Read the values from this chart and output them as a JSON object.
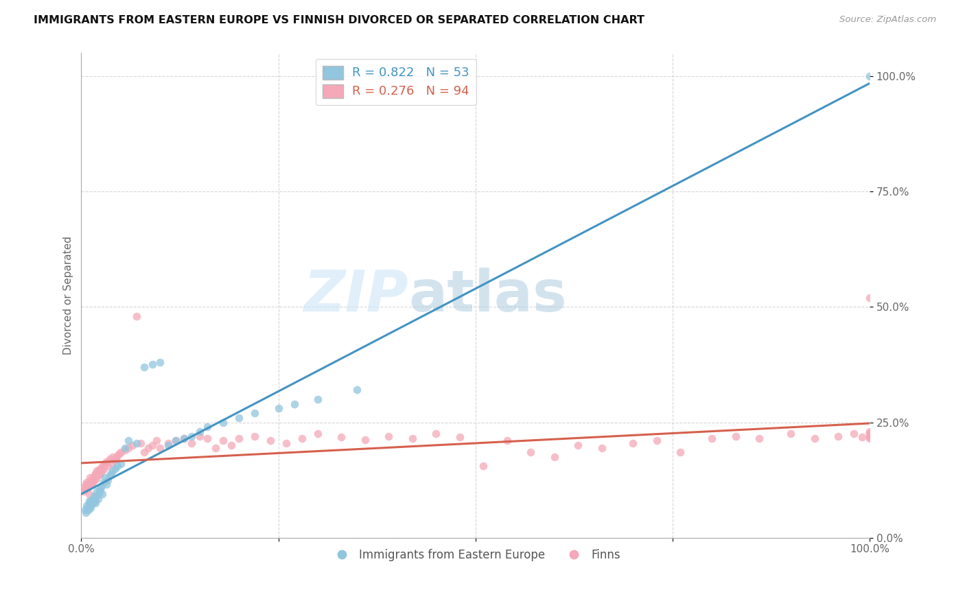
{
  "title": "IMMIGRANTS FROM EASTERN EUROPE VS FINNISH DIVORCED OR SEPARATED CORRELATION CHART",
  "source": "Source: ZipAtlas.com",
  "ylabel": "Divorced or Separated",
  "watermark_part1": "ZIP",
  "watermark_part2": "atlas",
  "blue_R": 0.822,
  "blue_N": 53,
  "pink_R": 0.276,
  "pink_N": 94,
  "blue_color": "#92c5de",
  "pink_color": "#f4a8b8",
  "blue_line_color": "#4393c3",
  "pink_line_color": "#d6604d",
  "ytick_labels": [
    "0.0%",
    "25.0%",
    "50.0%",
    "75.0%",
    "100.0%"
  ],
  "ytick_values": [
    0.0,
    0.25,
    0.5,
    0.75,
    1.0
  ],
  "blue_scatter_x": [
    0.005,
    0.006,
    0.007,
    0.008,
    0.009,
    0.01,
    0.01,
    0.011,
    0.012,
    0.013,
    0.014,
    0.015,
    0.016,
    0.017,
    0.018,
    0.019,
    0.02,
    0.021,
    0.022,
    0.023,
    0.024,
    0.025,
    0.027,
    0.028,
    0.03,
    0.032,
    0.034,
    0.036,
    0.038,
    0.04,
    0.043,
    0.046,
    0.05,
    0.055,
    0.06,
    0.07,
    0.08,
    0.09,
    0.1,
    0.11,
    0.12,
    0.13,
    0.14,
    0.15,
    0.16,
    0.18,
    0.2,
    0.22,
    0.25,
    0.27,
    0.3,
    0.35,
    1.0
  ],
  "blue_scatter_y": [
    0.06,
    0.055,
    0.07,
    0.065,
    0.06,
    0.08,
    0.075,
    0.07,
    0.065,
    0.08,
    0.075,
    0.085,
    0.09,
    0.08,
    0.075,
    0.09,
    0.1,
    0.085,
    0.095,
    0.1,
    0.105,
    0.11,
    0.095,
    0.12,
    0.13,
    0.115,
    0.125,
    0.135,
    0.14,
    0.145,
    0.15,
    0.155,
    0.16,
    0.195,
    0.21,
    0.205,
    0.37,
    0.375,
    0.38,
    0.2,
    0.21,
    0.215,
    0.22,
    0.23,
    0.24,
    0.25,
    0.26,
    0.27,
    0.28,
    0.29,
    0.3,
    0.32,
    1.0
  ],
  "pink_scatter_x": [
    0.003,
    0.004,
    0.005,
    0.006,
    0.007,
    0.008,
    0.009,
    0.01,
    0.01,
    0.011,
    0.012,
    0.013,
    0.014,
    0.015,
    0.016,
    0.017,
    0.018,
    0.019,
    0.02,
    0.021,
    0.022,
    0.023,
    0.024,
    0.025,
    0.026,
    0.027,
    0.028,
    0.029,
    0.03,
    0.032,
    0.034,
    0.036,
    0.038,
    0.04,
    0.042,
    0.044,
    0.046,
    0.048,
    0.05,
    0.055,
    0.06,
    0.065,
    0.07,
    0.075,
    0.08,
    0.085,
    0.09,
    0.095,
    0.1,
    0.11,
    0.12,
    0.13,
    0.14,
    0.15,
    0.16,
    0.17,
    0.18,
    0.19,
    0.2,
    0.22,
    0.24,
    0.26,
    0.28,
    0.3,
    0.33,
    0.36,
    0.39,
    0.42,
    0.45,
    0.48,
    0.51,
    0.54,
    0.57,
    0.6,
    0.63,
    0.66,
    0.7,
    0.73,
    0.76,
    0.8,
    0.83,
    0.86,
    0.9,
    0.93,
    0.96,
    0.98,
    0.99,
    1.0,
    1.0,
    1.0,
    1.0,
    1.0,
    1.0,
    1.0
  ],
  "pink_scatter_y": [
    0.1,
    0.11,
    0.105,
    0.115,
    0.12,
    0.108,
    0.112,
    0.118,
    0.095,
    0.13,
    0.125,
    0.115,
    0.12,
    0.13,
    0.125,
    0.135,
    0.14,
    0.128,
    0.145,
    0.135,
    0.14,
    0.148,
    0.138,
    0.15,
    0.145,
    0.155,
    0.148,
    0.158,
    0.16,
    0.165,
    0.155,
    0.17,
    0.162,
    0.175,
    0.168,
    0.172,
    0.178,
    0.182,
    0.185,
    0.19,
    0.195,
    0.2,
    0.48,
    0.205,
    0.185,
    0.195,
    0.2,
    0.21,
    0.195,
    0.205,
    0.21,
    0.215,
    0.205,
    0.22,
    0.215,
    0.195,
    0.21,
    0.2,
    0.215,
    0.22,
    0.21,
    0.205,
    0.215,
    0.225,
    0.218,
    0.212,
    0.22,
    0.215,
    0.225,
    0.218,
    0.155,
    0.21,
    0.185,
    0.175,
    0.2,
    0.195,
    0.205,
    0.21,
    0.185,
    0.215,
    0.22,
    0.215,
    0.225,
    0.215,
    0.22,
    0.225,
    0.218,
    0.22,
    0.215,
    0.225,
    0.22,
    0.23,
    0.52,
    0.225
  ]
}
